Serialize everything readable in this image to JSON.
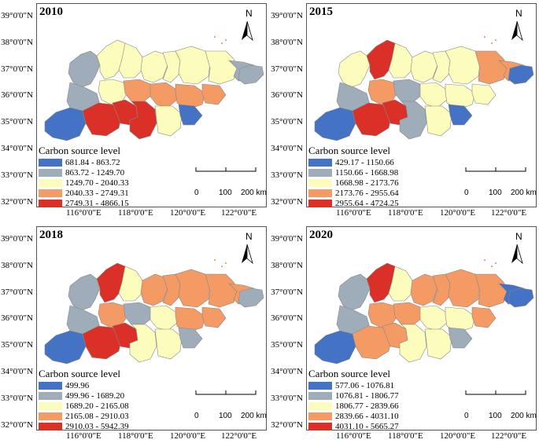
{
  "figure": {
    "lat_labels": [
      "39°0'0\"N",
      "38°0'0\"N",
      "37°0'0\"N",
      "36°0'0\"N",
      "35°0'0\"N",
      "34°0'0\"N",
      "33°0'0\"N",
      "32°0'0\"N"
    ],
    "lon_labels": [
      "116°0'0\"E",
      "118°0'0\"E",
      "120°0'0\"E",
      "122°0'0\"E"
    ],
    "north_label": "N",
    "scale": {
      "zero": "0",
      "mid": "100",
      "end": "200 km"
    },
    "legend_title": "Carbon source level",
    "colors": {
      "level1": "#4472c4",
      "level2": "#9eadb9",
      "level3": "#fcfcbc",
      "level4": "#f49a64",
      "level5": "#da3028"
    }
  },
  "panels": [
    {
      "year": "2010",
      "levels": [
        "681.84 - 863.72",
        "863.72 - 1249.70",
        "1249.70 - 2040.33",
        "2040.33 - 2749.31",
        "2749.31 - 4866.15"
      ]
    },
    {
      "year": "2015",
      "levels": [
        "429.17 - 1150.66",
        "1150.66 - 1668.98",
        "1668.98 - 2173.76",
        "2173.76 - 2955.64",
        "2955.64 - 4724.25"
      ]
    },
    {
      "year": "2018",
      "levels": [
        "499.96",
        "499.96 - 1689.20",
        "1689.20 - 2165.08",
        "2165.08 - 2910.03",
        "2910.03 - 5942.39"
      ]
    },
    {
      "year": "2020",
      "levels": [
        "577.06 - 1076.81",
        "1076.81 - 1806.77",
        "1806.77 - 2839.66",
        "2839.66 - 4031.10",
        "4031.10 - 5665.27"
      ]
    }
  ]
}
